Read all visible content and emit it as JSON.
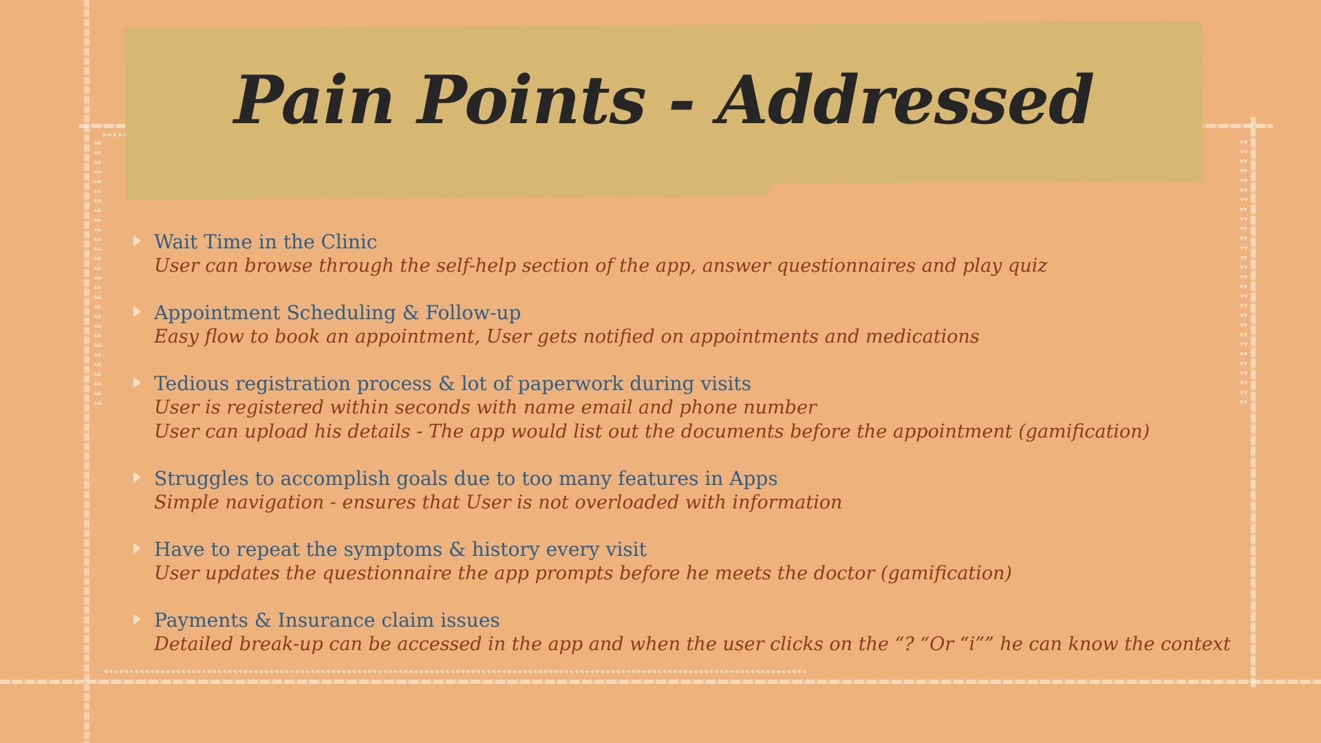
{
  "slide": {
    "title": "Pain Points - Addressed",
    "items": [
      {
        "title": "Wait Time in the Clinic",
        "details": [
          "User can browse through the self-help section of the app, answer questionnaires and play quiz"
        ]
      },
      {
        "title": "Appointment Scheduling & Follow-up",
        "details": [
          "Easy flow to book an appointment, User gets notified on appointments and medications"
        ]
      },
      {
        "title": "Tedious registration process & lot of paperwork during visits",
        "details": [
          "User is registered within seconds with name email and phone number",
          "User can upload his details - The app would list out the documents before the appointment (gamification)"
        ]
      },
      {
        "title": "Struggles to accomplish goals due to too many features in Apps",
        "details": [
          "Simple navigation - ensures that User is not overloaded with information"
        ]
      },
      {
        "title": "Have to repeat the symptoms & history every visit",
        "details": [
          "User updates the questionnaire the app prompts before he meets the doctor (gamification)"
        ]
      },
      {
        "title": "Payments & Insurance claim issues",
        "details": [
          "Detailed break-up can be accessed in the app and when the user clicks on the “? “Or “i”” he can know the context"
        ]
      }
    ],
    "colors": {
      "background": "#eeb27c",
      "banner": "#d6b872",
      "title_text": "#262626",
      "item_title": "#2d5f86",
      "item_detail": "#8a3a1e",
      "bullet": "#f6dfc7"
    },
    "icons": {
      "bullet": "triangle-bullet-icon"
    }
  }
}
